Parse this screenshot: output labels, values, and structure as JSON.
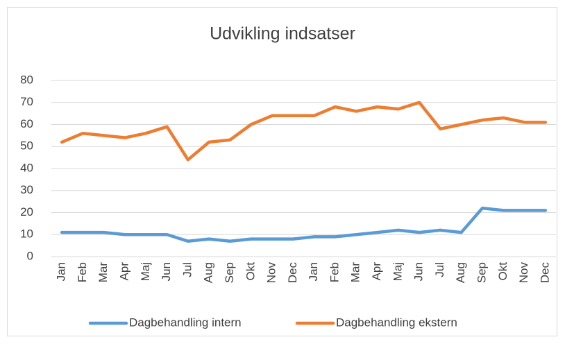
{
  "chart_data": {
    "type": "line",
    "title": "Udvikling indsatser",
    "categories": [
      "Jan",
      "Feb",
      "Mar",
      "Apr",
      "Maj",
      "Jun",
      "Jul",
      "Aug",
      "Sep",
      "Okt",
      "Nov",
      "Dec",
      "Jan",
      "Feb",
      "Mar",
      "Apr",
      "Maj",
      "Jun",
      "Jul",
      "Aug",
      "Sep",
      "Okt",
      "Nov",
      "Dec"
    ],
    "series": [
      {
        "name": "Dagbehandling intern",
        "color": "#5b9bd5",
        "values": [
          11,
          11,
          11,
          10,
          10,
          10,
          7,
          8,
          7,
          8,
          8,
          8,
          9,
          9,
          10,
          11,
          12,
          11,
          12,
          11,
          22,
          21,
          21,
          21
        ]
      },
      {
        "name": "Dagbehandling ekstern",
        "color": "#ed7d31",
        "values": [
          52,
          56,
          55,
          54,
          56,
          59,
          44,
          52,
          53,
          60,
          64,
          64,
          64,
          68,
          66,
          68,
          67,
          70,
          58,
          60,
          62,
          63,
          61,
          61
        ]
      }
    ],
    "ylim": [
      0,
      80
    ],
    "yticks": [
      0,
      10,
      20,
      30,
      40,
      50,
      60,
      70,
      80
    ],
    "grid": true,
    "legend": "bottom"
  }
}
